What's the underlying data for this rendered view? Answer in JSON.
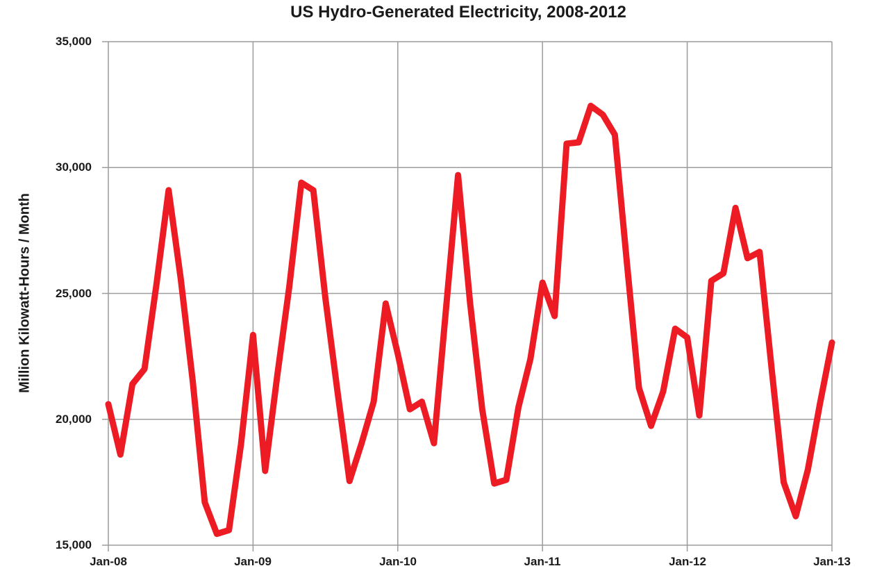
{
  "title": "US Hydro-Generated Electricity, 2008-2012",
  "y_axis": {
    "label": "Million Kilowatt-Hours / Month",
    "ticks": [
      "35,000",
      "30,000",
      "25,000",
      "20,000",
      "15,000"
    ]
  },
  "x_axis": {
    "ticks": [
      "Jan-08",
      "Jan-09",
      "Jan-10",
      "Jan-11",
      "Jan-12",
      "Jan-13"
    ]
  },
  "colors": {
    "line": "#ED1C24",
    "grid": "#9C9C9C",
    "text": "#1a1a1a",
    "background": "#ffffff"
  },
  "chart_data": {
    "type": "line",
    "title": "US Hydro-Generated Electricity, 2008-2012",
    "xlabel": "",
    "ylabel": "Million Kilowatt-Hours / Month",
    "ylim": [
      15000,
      35000
    ],
    "ytick_values": [
      35000,
      30000,
      25000,
      20000,
      15000
    ],
    "grid": true,
    "legend_position": "none",
    "categories": [
      "Jan-08",
      "Feb-08",
      "Mar-08",
      "Apr-08",
      "May-08",
      "Jun-08",
      "Jul-08",
      "Aug-08",
      "Sep-08",
      "Oct-08",
      "Nov-08",
      "Dec-08",
      "Jan-09",
      "Feb-09",
      "Mar-09",
      "Apr-09",
      "May-09",
      "Jun-09",
      "Jul-09",
      "Aug-09",
      "Sep-09",
      "Oct-09",
      "Nov-09",
      "Dec-09",
      "Jan-10",
      "Feb-10",
      "Mar-10",
      "Apr-10",
      "May-10",
      "Jun-10",
      "Jul-10",
      "Aug-10",
      "Sep-10",
      "Oct-10",
      "Nov-10",
      "Dec-10",
      "Jan-11",
      "Feb-11",
      "Mar-11",
      "Apr-11",
      "May-11",
      "Jun-11",
      "Jul-11",
      "Aug-11",
      "Sep-11",
      "Oct-11",
      "Nov-11",
      "Dec-11",
      "Jan-12",
      "Feb-12",
      "Mar-12",
      "Apr-12",
      "May-12",
      "Jun-12",
      "Jul-12",
      "Aug-12",
      "Sep-12",
      "Oct-12",
      "Nov-12",
      "Dec-12",
      "Jan-13"
    ],
    "series": [
      {
        "name": "US hydro-generated electricity",
        "color": "#ED1C24",
        "values": [
          20600,
          18600,
          21400,
          22000,
          25400,
          29100,
          25600,
          21500,
          16700,
          15450,
          15600,
          19000,
          23350,
          17950,
          21700,
          25250,
          29400,
          29100,
          24800,
          21100,
          17550,
          19050,
          20700,
          24600,
          22600,
          20400,
          20700,
          19050,
          24400,
          29700,
          24600,
          20400,
          17450,
          17600,
          20470,
          22400,
          25430,
          24100,
          30950,
          31000,
          32450,
          32100,
          31300,
          26200,
          21250,
          19740,
          21100,
          23600,
          23250,
          20150,
          25500,
          25800,
          28400,
          26400,
          26650,
          22000,
          17500,
          16150,
          18000,
          20600,
          23050
        ]
      }
    ]
  }
}
